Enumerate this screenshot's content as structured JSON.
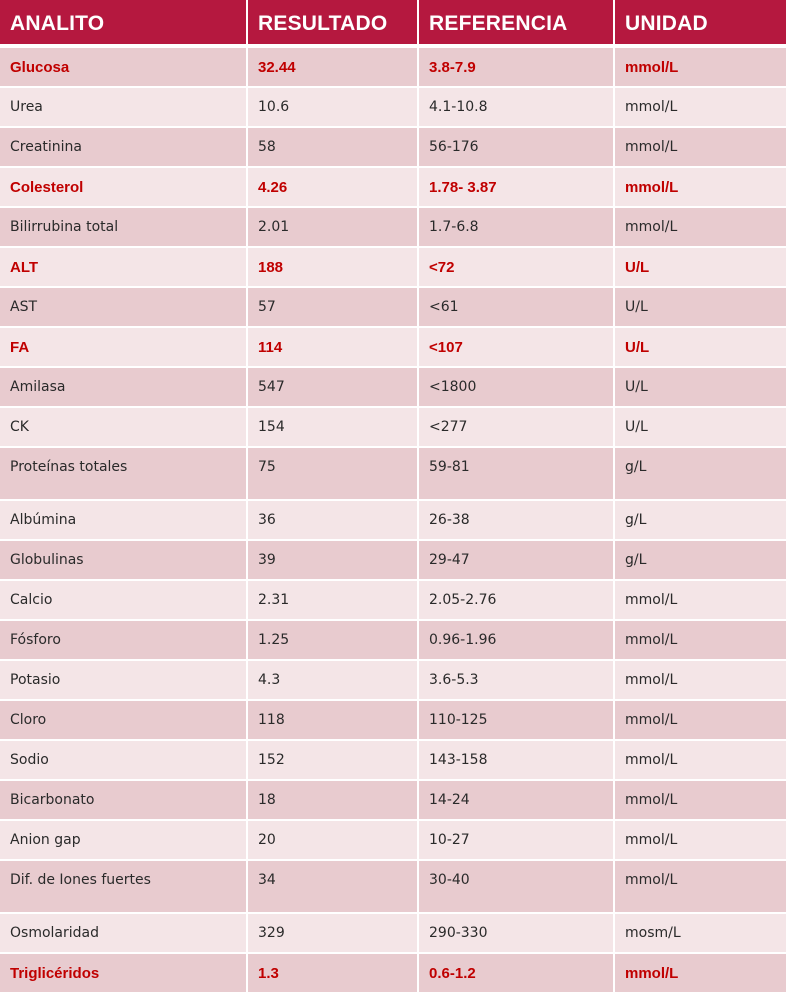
{
  "table": {
    "headers": [
      "ANALITO",
      "RESULTADO",
      "REFERENCIA",
      "UNIDAD"
    ],
    "rows": [
      {
        "analito": "Glucosa",
        "resultado": "32.44",
        "referencia": "3.8-7.9",
        "unidad": "mmol/L",
        "flag": true
      },
      {
        "analito": "Urea",
        "resultado": "10.6",
        "referencia": "4.1-10.8",
        "unidad": "mmol/L",
        "flag": false
      },
      {
        "analito": "Creatinina",
        "resultado": "58",
        "referencia": "56-176",
        "unidad": "mmol/L",
        "flag": false
      },
      {
        "analito": "Colesterol",
        "resultado": "4.26",
        "referencia": "1.78- 3.87",
        "unidad": "mmol/L",
        "flag": true
      },
      {
        "analito": "Bilirrubina total",
        "resultado": "2.01",
        "referencia": "1.7-6.8",
        "unidad": "mmol/L",
        "flag": false
      },
      {
        "analito": "ALT",
        "resultado": "188",
        "referencia": "<72",
        "unidad": "U/L",
        "flag": true
      },
      {
        "analito": "AST",
        "resultado": "57",
        "referencia": "<61",
        "unidad": "U/L",
        "flag": false
      },
      {
        "analito": "FA",
        "resultado": "114",
        "referencia": "<107",
        "unidad": "U/L",
        "flag": true
      },
      {
        "analito": "Amilasa",
        "resultado": "547",
        "referencia": "<1800",
        "unidad": "U/L",
        "flag": false
      },
      {
        "analito": "CK",
        "resultado": "154",
        "referencia": "<277",
        "unidad": "U/L",
        "flag": false
      },
      {
        "analito": "Proteínas totales",
        "resultado": "75",
        "referencia": "59-81",
        "unidad": "g/L",
        "flag": false
      },
      {
        "analito": "Albúmina",
        "resultado": "36",
        "referencia": "26-38",
        "unidad": "g/L",
        "flag": false
      },
      {
        "analito": "Globulinas",
        "resultado": "39",
        "referencia": "29-47",
        "unidad": "g/L",
        "flag": false
      },
      {
        "analito": "Calcio",
        "resultado": "2.31",
        "referencia": "2.05-2.76",
        "unidad": "mmol/L",
        "flag": false
      },
      {
        "analito": "Fósforo",
        "resultado": "1.25",
        "referencia": "0.96-1.96",
        "unidad": "mmol/L",
        "flag": false
      },
      {
        "analito": "Potasio",
        "resultado": "4.3",
        "referencia": "3.6-5.3",
        "unidad": "mmol/L",
        "flag": false
      },
      {
        "analito": "Cloro",
        "resultado": "118",
        "referencia": "110-125",
        "unidad": "mmol/L",
        "flag": false
      },
      {
        "analito": "Sodio",
        "resultado": "152",
        "referencia": "143-158",
        "unidad": "mmol/L",
        "flag": false
      },
      {
        "analito": "Bicarbonato",
        "resultado": "18",
        "referencia": "14-24",
        "unidad": "mmol/L",
        "flag": false
      },
      {
        "analito": "Anion gap",
        "resultado": "20",
        "referencia": "10-27",
        "unidad": "mmol/L",
        "flag": false
      },
      {
        "analito": "Dif. de Iones fuertes",
        "resultado": "34",
        "referencia": "30-40",
        "unidad": "mmol/L",
        "flag": false
      },
      {
        "analito": "Osmolaridad",
        "resultado": "329",
        "referencia": "290-330",
        "unidad": "mosm/L",
        "flag": false
      },
      {
        "analito": "Triglicéridos",
        "resultado": "1.3",
        "referencia": "0.6-1.2",
        "unidad": "mmol/L",
        "flag": true
      }
    ]
  },
  "colors": {
    "header_bg": "#b5183f",
    "row_shade_a": "#e8cbcf",
    "row_shade_b": "#f4e5e7",
    "flag_text": "#c00000"
  }
}
